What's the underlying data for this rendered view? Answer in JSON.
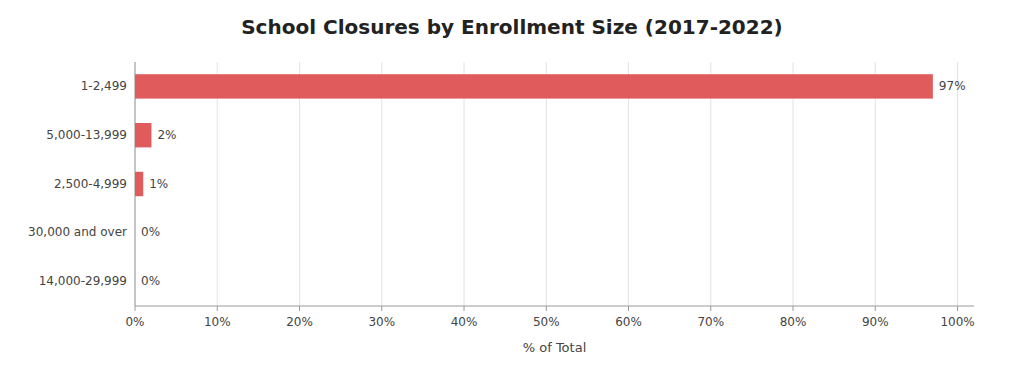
{
  "chart_data": {
    "type": "bar",
    "orientation": "horizontal",
    "title": "School Closures by Enrollment Size (2017-2022)",
    "categories": [
      "1-2,499",
      "5,000-13,999",
      "2,500-4,999",
      "30,000 and over",
      "14,000-29,999"
    ],
    "values": [
      97,
      2,
      1,
      0,
      0
    ],
    "value_labels": [
      "97%",
      "2%",
      "1%",
      "0%",
      "0%"
    ],
    "data_labels": true,
    "color": "#e05c5c",
    "xlabel": "% of Total",
    "xlim": [
      0,
      102
    ],
    "xticks": [
      {
        "value": 0,
        "label": "0%"
      },
      {
        "value": 10,
        "label": "10%"
      },
      {
        "value": 20,
        "label": "20%"
      },
      {
        "value": 30,
        "label": "30%"
      },
      {
        "value": 40,
        "label": "40%"
      },
      {
        "value": 50,
        "label": "50%"
      },
      {
        "value": 60,
        "label": "60%"
      },
      {
        "value": 70,
        "label": "70%"
      },
      {
        "value": 80,
        "label": "80%"
      },
      {
        "value": 90,
        "label": "90%"
      },
      {
        "value": 100,
        "label": "100%"
      }
    ],
    "grid": true
  }
}
